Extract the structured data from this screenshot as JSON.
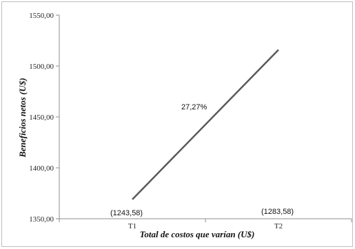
{
  "chart_data": {
    "type": "line",
    "categories": [
      "T1",
      "T2"
    ],
    "series": [
      {
        "values": [
          1369.0,
          1516.0
        ],
        "color": "#595959"
      }
    ],
    "ylabel": "Beneficios netos (U$)",
    "xlabel": "Total de costos que varían (U$)",
    "ylim": [
      1350,
      1550
    ],
    "yticks": [
      "1350,00",
      "1400,00",
      "1450,00",
      "1500,00",
      "1550,00"
    ],
    "annotations": {
      "slope": "27,27%",
      "t1_cost": "(1243,58)",
      "t2_cost": "(1283,58)"
    },
    "grid": false
  }
}
